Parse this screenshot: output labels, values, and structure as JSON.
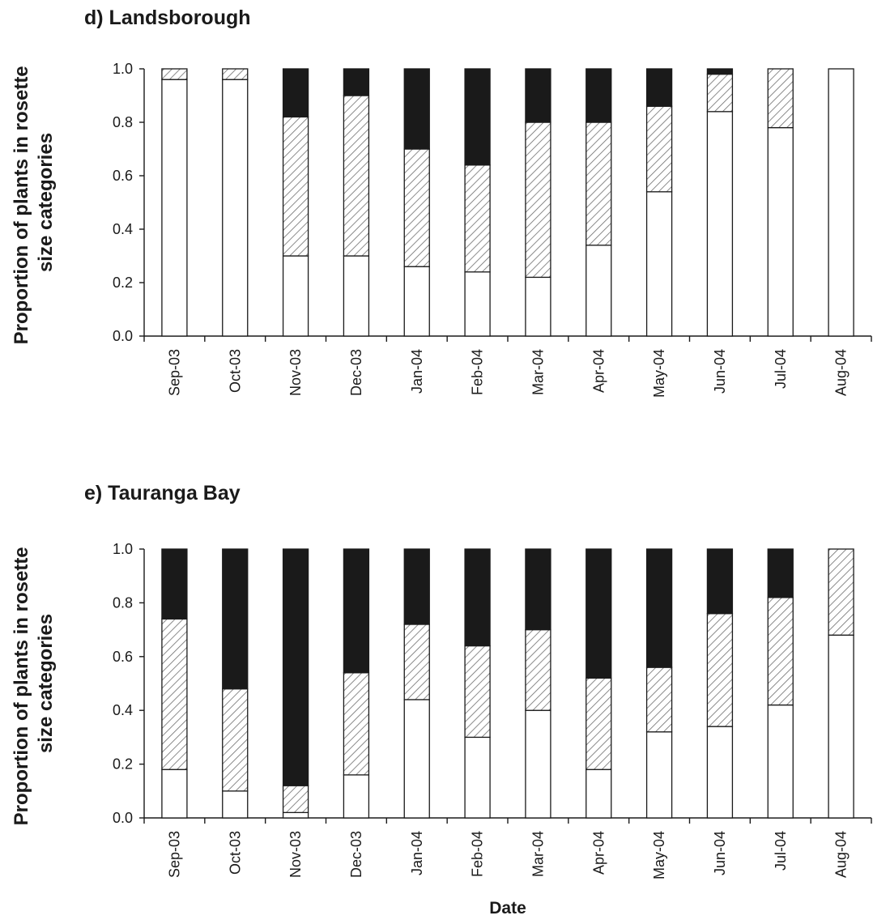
{
  "colors": {
    "small": "#ffffff",
    "medium_hatch": "#6e6e6e",
    "large": "#1a1a1a",
    "outline": "#1a1a1a"
  },
  "chart_data": [
    {
      "type": "bar",
      "stacked": true,
      "title": "d) Landsborough",
      "xlabel": "",
      "ylabel": "Proportion of plants in rosette size categories",
      "ylabel_lines": [
        "Proportion of plants in rosette",
        "size categories"
      ],
      "ylim": [
        0,
        1
      ],
      "yticks": [
        "0.0",
        "0.2",
        "0.4",
        "0.6",
        "0.8",
        "1.0"
      ],
      "grid": false,
      "categories": [
        "Sep-03",
        "Oct-03",
        "Nov-03",
        "Dec-03",
        "Jan-04",
        "Feb-04",
        "Mar-04",
        "Apr-04",
        "May-04",
        "Jun-04",
        "Jul-04",
        "Aug-04"
      ],
      "series": [
        {
          "fill": "white",
          "values": [
            0.96,
            0.96,
            0.3,
            0.3,
            0.26,
            0.24,
            0.22,
            0.34,
            0.54,
            0.84,
            0.78,
            1.0
          ]
        },
        {
          "fill": "hatched",
          "values": [
            0.04,
            0.04,
            0.52,
            0.6,
            0.44,
            0.4,
            0.58,
            0.46,
            0.32,
            0.14,
            0.22,
            0.0
          ]
        },
        {
          "fill": "black",
          "values": [
            0.0,
            0.0,
            0.18,
            0.1,
            0.3,
            0.36,
            0.2,
            0.2,
            0.14,
            0.02,
            0.0,
            0.0
          ]
        }
      ]
    },
    {
      "type": "bar",
      "stacked": true,
      "title": "e) Tauranga Bay",
      "xlabel": "Date",
      "ylabel": "Proportion of plants in rosette size categories",
      "ylabel_lines": [
        "Proportion of plants in rosette",
        "size categories"
      ],
      "ylim": [
        0,
        1
      ],
      "yticks": [
        "0.0",
        "0.2",
        "0.4",
        "0.6",
        "0.8",
        "1.0"
      ],
      "grid": false,
      "categories": [
        "Sep-03",
        "Oct-03",
        "Nov-03",
        "Dec-03",
        "Jan-04",
        "Feb-04",
        "Mar-04",
        "Apr-04",
        "May-04",
        "Jun-04",
        "Jul-04",
        "Aug-04"
      ],
      "series": [
        {
          "fill": "white",
          "values": [
            0.18,
            0.1,
            0.02,
            0.16,
            0.44,
            0.3,
            0.4,
            0.18,
            0.32,
            0.34,
            0.42,
            0.68
          ]
        },
        {
          "fill": "hatched",
          "values": [
            0.56,
            0.38,
            0.1,
            0.38,
            0.28,
            0.34,
            0.3,
            0.34,
            0.24,
            0.42,
            0.4,
            0.32
          ]
        },
        {
          "fill": "black",
          "values": [
            0.26,
            0.52,
            0.88,
            0.46,
            0.28,
            0.36,
            0.3,
            0.48,
            0.44,
            0.24,
            0.18,
            0.0
          ]
        }
      ]
    }
  ]
}
